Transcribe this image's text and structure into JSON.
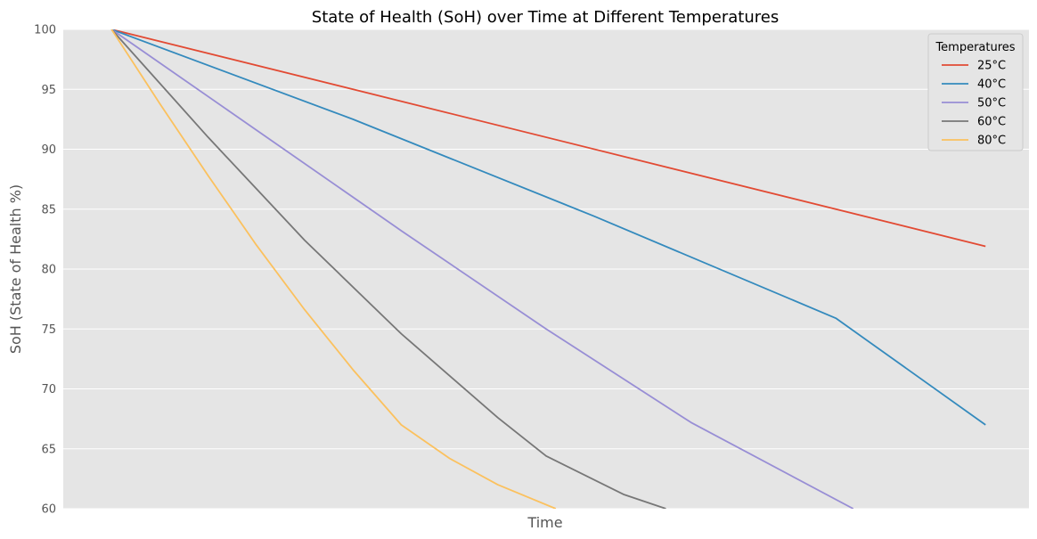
{
  "chart_data": {
    "type": "line",
    "title": "State of Health (SoH) over Time at Different Temperatures",
    "xlabel": "Time",
    "ylabel": "SoH (State of Health %)",
    "ylim": [
      60,
      100
    ],
    "yticks": [
      60,
      65,
      70,
      75,
      80,
      85,
      90,
      95,
      100
    ],
    "xlim": [
      0,
      1
    ],
    "grid": true,
    "legend": {
      "title": "Temperatures",
      "placement": "top-right"
    },
    "series": [
      {
        "name": "25°C",
        "color": "#E24A33",
        "x": [
          0.05,
          0.955
        ],
        "y": [
          100,
          81.9
        ]
      },
      {
        "name": "40°C",
        "color": "#348ABD",
        "x": [
          0.05,
          0.3,
          0.55,
          0.8,
          0.955
        ],
        "y": [
          100,
          92.5,
          84.4,
          75.9,
          67.0
        ]
      },
      {
        "name": "50°C",
        "color": "#988ED5",
        "x": [
          0.05,
          0.2,
          0.35,
          0.5,
          0.65,
          0.818
        ],
        "y": [
          100,
          91.6,
          83.2,
          75.0,
          67.2,
          60.0
        ]
      },
      {
        "name": "60°C",
        "color": "#777777",
        "x": [
          0.05,
          0.15,
          0.25,
          0.35,
          0.45,
          0.5,
          0.58,
          0.624
        ],
        "y": [
          100,
          91.0,
          82.4,
          74.6,
          67.6,
          64.4,
          61.2,
          60.0
        ]
      },
      {
        "name": "80°C",
        "color": "#FBC15E",
        "x": [
          0.05,
          0.1,
          0.15,
          0.2,
          0.25,
          0.3,
          0.35,
          0.4,
          0.45,
          0.51
        ],
        "y": [
          100,
          93.8,
          87.8,
          82.0,
          76.6,
          71.6,
          67.0,
          64.2,
          62.0,
          60.0
        ]
      }
    ]
  }
}
